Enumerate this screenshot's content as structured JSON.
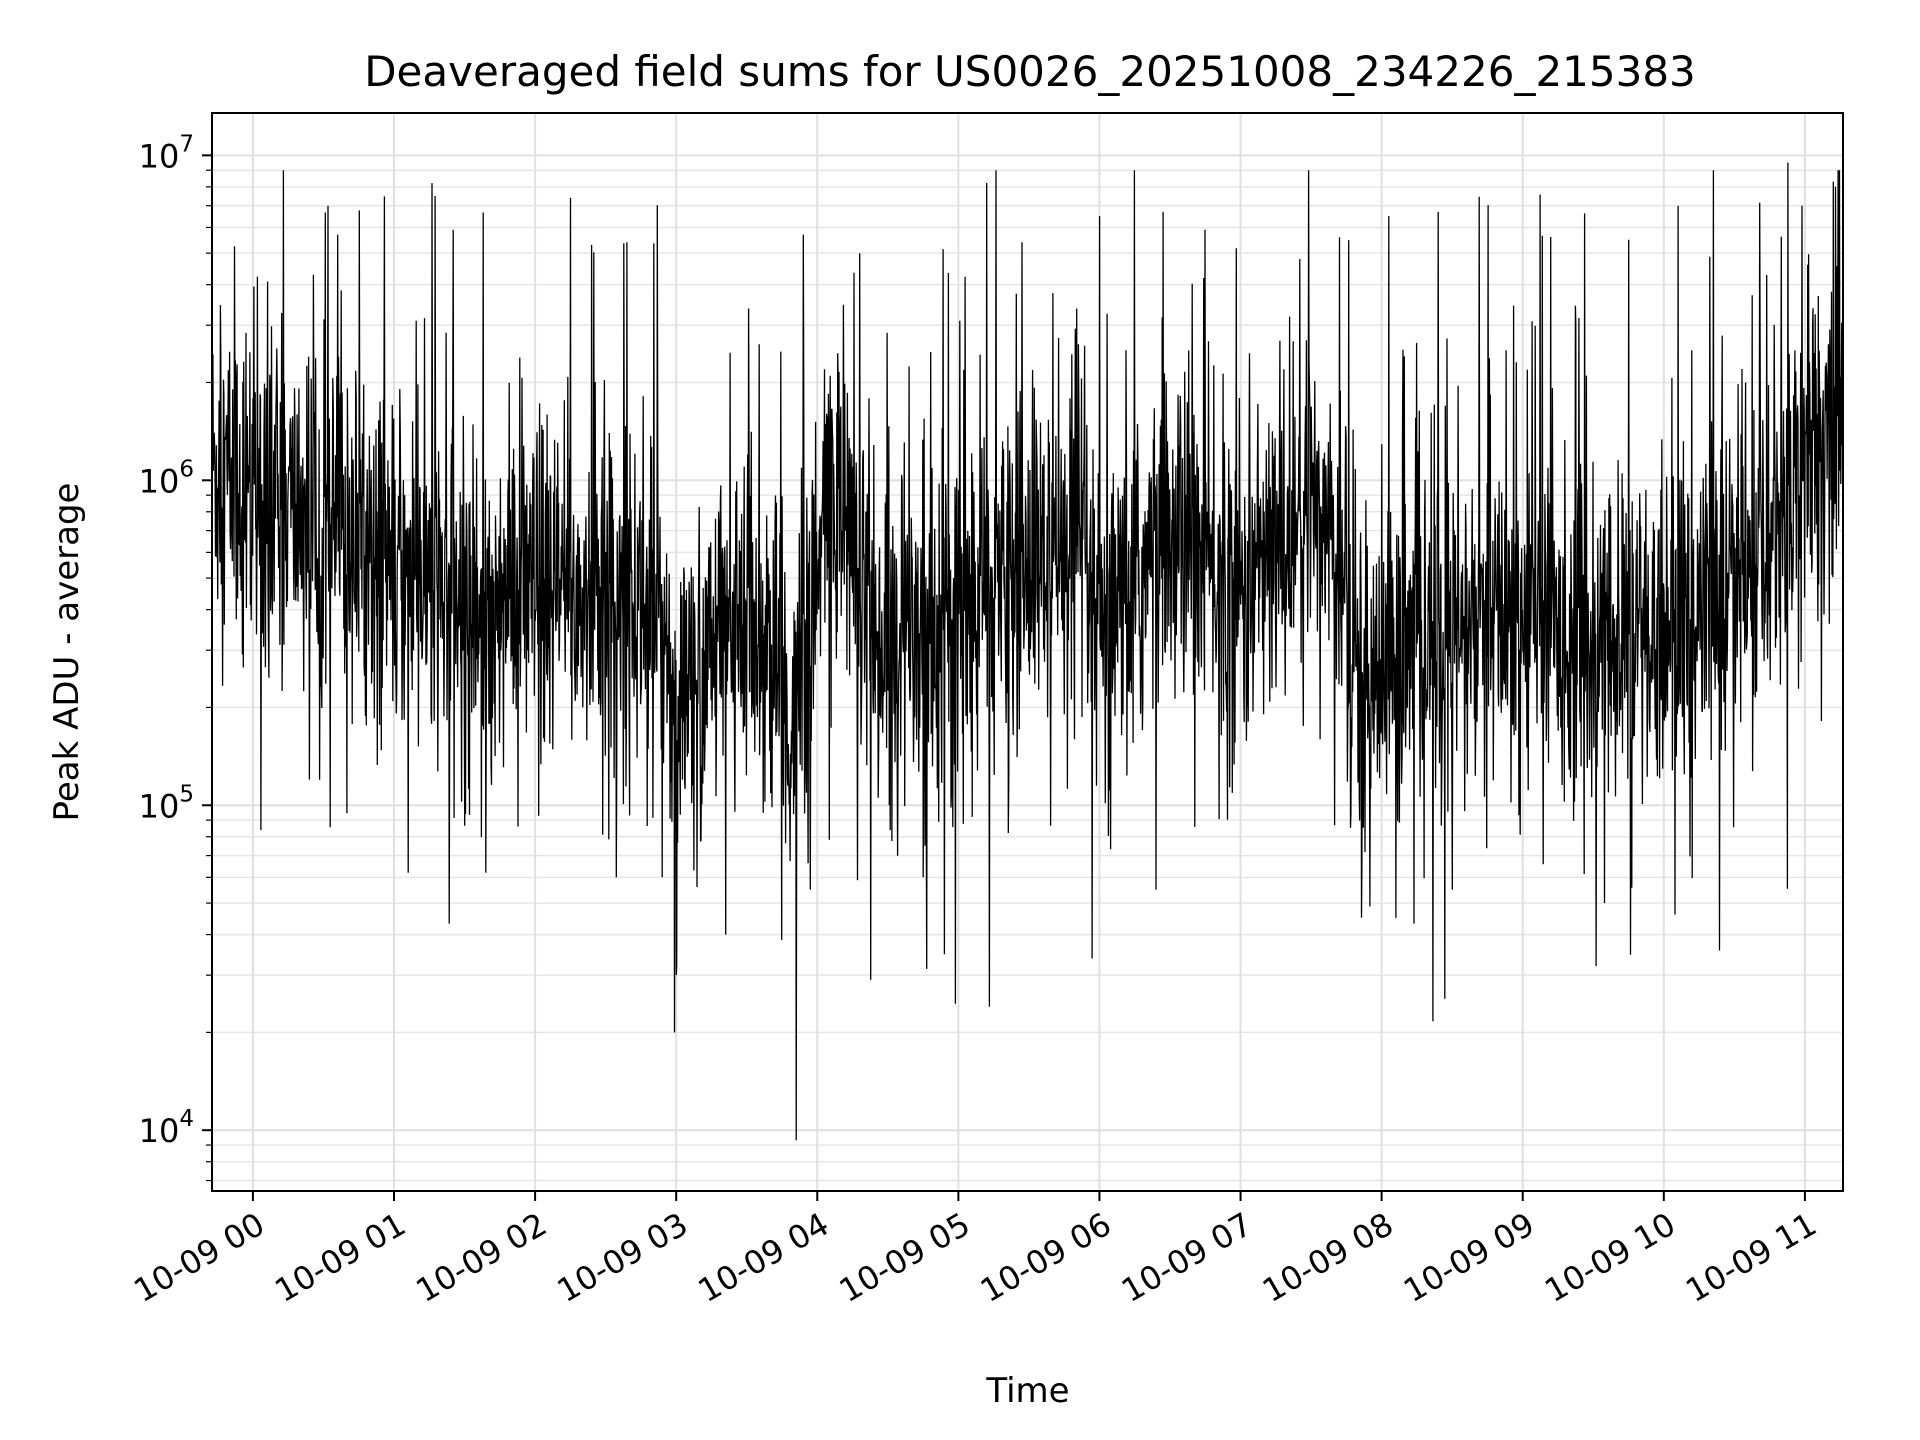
{
  "chart_data": {
    "type": "line",
    "title": "Deaveraged field sums for US0026_20251008_234226_215383",
    "xlabel": "Time",
    "ylabel": "Peak ADU - average",
    "yscale": "log",
    "ylim": [
      6500,
      13500000
    ],
    "xlim_hours": [
      -0.29,
      11.27
    ],
    "grid": true,
    "line_color": "#000000",
    "x_ticks": [
      {
        "label": "10-09 00",
        "hour": 0
      },
      {
        "label": "10-09 01",
        "hour": 1
      },
      {
        "label": "10-09 02",
        "hour": 2
      },
      {
        "label": "10-09 03",
        "hour": 3
      },
      {
        "label": "10-09 04",
        "hour": 4
      },
      {
        "label": "10-09 05",
        "hour": 5
      },
      {
        "label": "10-09 06",
        "hour": 6
      },
      {
        "label": "10-09 07",
        "hour": 7
      },
      {
        "label": "10-09 08",
        "hour": 8
      },
      {
        "label": "10-09 09",
        "hour": 9
      },
      {
        "label": "10-09 10",
        "hour": 10
      },
      {
        "label": "10-09 11",
        "hour": 11
      }
    ],
    "y_ticks": [
      {
        "base": "10",
        "exp": "4",
        "value": 10000
      },
      {
        "base": "10",
        "exp": "5",
        "value": 100000
      },
      {
        "base": "10",
        "exp": "6",
        "value": 1000000
      },
      {
        "base": "10",
        "exp": "7",
        "value": 10000000
      }
    ],
    "trend_hours": [
      -0.29,
      0.3,
      0.7,
      1.0,
      1.5,
      2.0,
      2.5,
      2.9,
      3.0,
      3.5,
      3.85,
      4.1,
      4.5,
      5.0,
      5.5,
      5.9,
      6.0,
      6.5,
      7.0,
      7.4,
      7.6,
      7.8,
      8.5,
      9.0,
      9.5,
      10.0,
      10.5,
      10.7,
      10.9,
      11.27
    ],
    "trend_values": [
      1100000,
      800000,
      700000,
      550000,
      400000,
      450000,
      420000,
      420000,
      180000,
      450000,
      160000,
      1000000,
      300000,
      400000,
      550000,
      500000,
      300000,
      700000,
      450000,
      700000,
      900000,
      250000,
      320000,
      400000,
      300000,
      350000,
      500000,
      500000,
      1100000,
      1800000
    ],
    "series_samples": 3700,
    "noise_sigma_decades": 0.25,
    "spike_high": [
      {
        "hour": 0.6,
        "value": 5700000
      },
      {
        "hour": 1.29,
        "value": 7500000
      },
      {
        "hour": 1.42,
        "value": 5900000
      },
      {
        "hour": 2.25,
        "value": 7400000
      },
      {
        "hour": 2.4,
        "value": 5300000
      },
      {
        "hour": 2.65,
        "value": 5400000
      },
      {
        "hour": 3.9,
        "value": 5700000
      },
      {
        "hour": 4.3,
        "value": 5000000
      },
      {
        "hour": 5.45,
        "value": 5400000
      },
      {
        "hour": 6.0,
        "value": 6500000
      },
      {
        "hour": 6.45,
        "value": 6700000
      },
      {
        "hour": 7.7,
        "value": 5600000
      },
      {
        "hour": 8.05,
        "value": 6500000
      },
      {
        "hour": 8.4,
        "value": 6700000
      },
      {
        "hour": 9.75,
        "value": 5500000
      },
      {
        "hour": 10.1,
        "value": 7000000
      },
      {
        "hour": 10.88,
        "value": 9500000
      },
      {
        "hour": 11.2,
        "value": 8300000
      }
    ],
    "spike_low": [
      {
        "hour": 0.4,
        "value": 120000
      },
      {
        "hour": 1.1,
        "value": 62000
      },
      {
        "hour": 1.65,
        "value": 62000
      },
      {
        "hour": 2.9,
        "value": 60000
      },
      {
        "hour": 3.35,
        "value": 40000
      },
      {
        "hour": 3.85,
        "value": 9300
      },
      {
        "hour": 3.95,
        "value": 55000
      },
      {
        "hour": 4.38,
        "value": 29000
      },
      {
        "hour": 4.75,
        "value": 60000
      },
      {
        "hour": 4.98,
        "value": 24500
      },
      {
        "hour": 5.22,
        "value": 24000
      },
      {
        "hour": 6.4,
        "value": 55000
      },
      {
        "hour": 8.1,
        "value": 45000
      },
      {
        "hour": 8.5,
        "value": 55000
      },
      {
        "hour": 9.52,
        "value": 32000
      },
      {
        "hour": 9.58,
        "value": 50000
      }
    ]
  }
}
